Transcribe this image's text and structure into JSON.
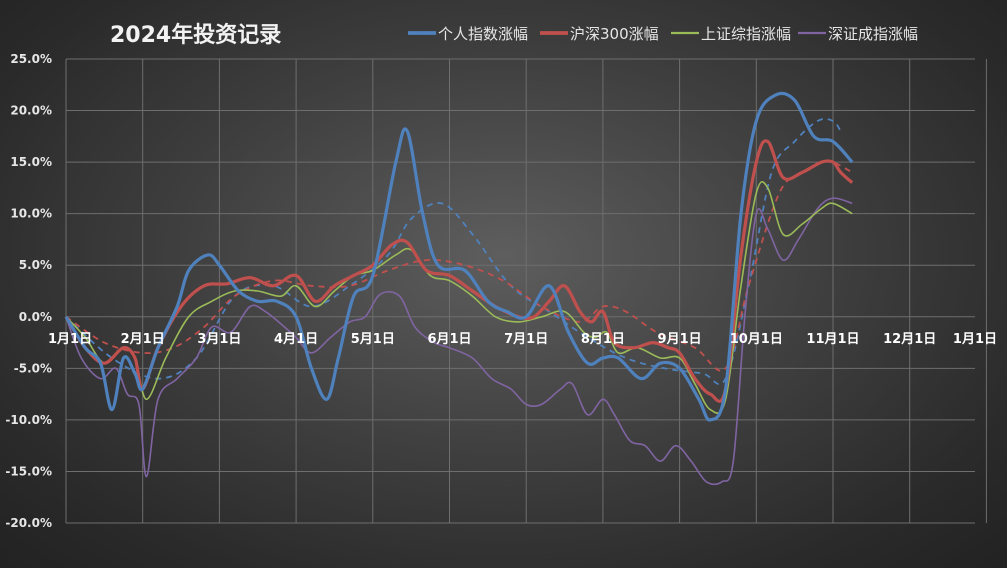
{
  "chart_data": {
    "type": "line",
    "title": "2024年投资记录",
    "xlabel": "",
    "ylabel": "",
    "x_ticks": [
      "1月1日",
      "2月1日",
      "3月1日",
      "4月1日",
      "5月1日",
      "6月1日",
      "7月1日",
      "8月1日",
      "9月1日",
      "10月1日",
      "11月1日",
      "12月1日",
      "1月1日"
    ],
    "y_ticks": [
      "25.0%",
      "20.0%",
      "15.0%",
      "10.0%",
      "5.0%",
      "0.0%",
      "-5.0%",
      "-10.0%",
      "-15.0%",
      "-20.0%"
    ],
    "ylim": [
      -20,
      25
    ],
    "x_unit": "month",
    "xlim": [
      0,
      12
    ],
    "grid": true,
    "legend_position": "top",
    "series": [
      {
        "name": "个人指数涨幅",
        "color": "#4f81bd",
        "values": [
          [
            0,
            0
          ],
          [
            0.25,
            -3
          ],
          [
            0.45,
            -4.5
          ],
          [
            0.6,
            -9
          ],
          [
            0.75,
            -4
          ],
          [
            0.9,
            -5.5
          ],
          [
            1,
            -7
          ],
          [
            1.2,
            -3
          ],
          [
            1.45,
            1
          ],
          [
            1.6,
            4.5
          ],
          [
            1.85,
            6
          ],
          [
            2,
            5
          ],
          [
            2.25,
            2.5
          ],
          [
            2.5,
            1.5
          ],
          [
            2.75,
            1.5
          ],
          [
            3,
            0
          ],
          [
            3.2,
            -5
          ],
          [
            3.4,
            -8
          ],
          [
            3.55,
            -4
          ],
          [
            3.75,
            2
          ],
          [
            4.0,
            4
          ],
          [
            4.3,
            15
          ],
          [
            4.45,
            18
          ],
          [
            4.65,
            10
          ],
          [
            4.85,
            5
          ],
          [
            5.2,
            4.5
          ],
          [
            5.5,
            1.5
          ],
          [
            5.75,
            0.5
          ],
          [
            6.0,
            0
          ],
          [
            6.3,
            3
          ],
          [
            6.55,
            -1.5
          ],
          [
            6.8,
            -4.5
          ],
          [
            7.0,
            -4
          ],
          [
            7.2,
            -4
          ],
          [
            7.5,
            -6
          ],
          [
            7.75,
            -4.5
          ],
          [
            8.0,
            -5
          ],
          [
            8.25,
            -8
          ],
          [
            8.4,
            -10
          ],
          [
            8.6,
            -7
          ],
          [
            8.8,
            10
          ],
          [
            9.0,
            19
          ],
          [
            9.25,
            21.5
          ],
          [
            9.5,
            21
          ],
          [
            9.75,
            17.5
          ],
          [
            10.0,
            17
          ],
          [
            10.25,
            15
          ]
        ]
      },
      {
        "name": "沪深300涨幅",
        "color": "#c0504d",
        "values": [
          [
            0,
            0
          ],
          [
            0.25,
            -3
          ],
          [
            0.5,
            -4.5
          ],
          [
            0.75,
            -3
          ],
          [
            0.9,
            -4
          ],
          [
            1.0,
            -7
          ],
          [
            1.2,
            -3
          ],
          [
            1.5,
            1
          ],
          [
            1.8,
            3
          ],
          [
            2.1,
            3.2
          ],
          [
            2.4,
            3.8
          ],
          [
            2.7,
            3
          ],
          [
            3.0,
            4
          ],
          [
            3.25,
            1.5
          ],
          [
            3.5,
            3
          ],
          [
            3.75,
            4
          ],
          [
            4.0,
            5
          ],
          [
            4.25,
            7
          ],
          [
            4.45,
            7.2
          ],
          [
            4.7,
            4.5
          ],
          [
            5.0,
            4
          ],
          [
            5.3,
            2.5
          ],
          [
            5.6,
            1
          ],
          [
            5.9,
            0
          ],
          [
            6.1,
            0
          ],
          [
            6.3,
            1.5
          ],
          [
            6.5,
            3
          ],
          [
            6.7,
            0.5
          ],
          [
            6.85,
            -0.5
          ],
          [
            7.0,
            0.5
          ],
          [
            7.15,
            -2.5
          ],
          [
            7.4,
            -3
          ],
          [
            7.65,
            -2.5
          ],
          [
            7.85,
            -3
          ],
          [
            8.0,
            -3.5
          ],
          [
            8.2,
            -6
          ],
          [
            8.4,
            -7.5
          ],
          [
            8.6,
            -7
          ],
          [
            8.8,
            6
          ],
          [
            9.0,
            15
          ],
          [
            9.15,
            17
          ],
          [
            9.35,
            13.5
          ],
          [
            9.6,
            14
          ],
          [
            9.85,
            15
          ],
          [
            10.0,
            15
          ],
          [
            10.1,
            14
          ],
          [
            10.25,
            13
          ]
        ]
      },
      {
        "name": "上证综指涨幅",
        "color": "#9bbb59",
        "values": [
          [
            0,
            0
          ],
          [
            0.25,
            -2
          ],
          [
            0.5,
            -4.5
          ],
          [
            0.75,
            -3
          ],
          [
            0.9,
            -4
          ],
          [
            1.05,
            -8
          ],
          [
            1.3,
            -4
          ],
          [
            1.6,
            0
          ],
          [
            1.9,
            1.5
          ],
          [
            2.2,
            2.5
          ],
          [
            2.5,
            2.5
          ],
          [
            2.8,
            2
          ],
          [
            3.0,
            3
          ],
          [
            3.25,
            1
          ],
          [
            3.5,
            2.5
          ],
          [
            3.75,
            4
          ],
          [
            4.0,
            4.5
          ],
          [
            4.3,
            6
          ],
          [
            4.5,
            6.5
          ],
          [
            4.75,
            4
          ],
          [
            5.0,
            3.5
          ],
          [
            5.3,
            2
          ],
          [
            5.6,
            0
          ],
          [
            5.9,
            -0.5
          ],
          [
            6.2,
            0
          ],
          [
            6.5,
            0.5
          ],
          [
            6.75,
            -1.5
          ],
          [
            6.9,
            -2
          ],
          [
            7.05,
            -1.5
          ],
          [
            7.2,
            -3.5
          ],
          [
            7.45,
            -3
          ],
          [
            7.75,
            -4
          ],
          [
            8.0,
            -4
          ],
          [
            8.2,
            -6.5
          ],
          [
            8.4,
            -9
          ],
          [
            8.6,
            -8
          ],
          [
            8.8,
            3
          ],
          [
            9.0,
            12
          ],
          [
            9.15,
            12.5
          ],
          [
            9.35,
            8
          ],
          [
            9.6,
            9
          ],
          [
            9.85,
            10.5
          ],
          [
            10.0,
            11
          ],
          [
            10.25,
            10
          ]
        ]
      },
      {
        "name": "深证成指涨幅",
        "color": "#8064a2",
        "values": [
          [
            0,
            0
          ],
          [
            0.2,
            -4
          ],
          [
            0.45,
            -6
          ],
          [
            0.65,
            -5
          ],
          [
            0.8,
            -7.5
          ],
          [
            0.95,
            -8.5
          ],
          [
            1.05,
            -15.5
          ],
          [
            1.2,
            -8
          ],
          [
            1.45,
            -6
          ],
          [
            1.7,
            -4
          ],
          [
            1.9,
            -1
          ],
          [
            2.15,
            -1.5
          ],
          [
            2.4,
            1
          ],
          [
            2.6,
            0.5
          ],
          [
            2.85,
            -1
          ],
          [
            3.0,
            -2
          ],
          [
            3.2,
            -3.5
          ],
          [
            3.45,
            -2
          ],
          [
            3.7,
            -0.5
          ],
          [
            3.9,
            0
          ],
          [
            4.1,
            2.2
          ],
          [
            4.35,
            2
          ],
          [
            4.55,
            -1
          ],
          [
            4.8,
            -2.5
          ],
          [
            5.0,
            -3
          ],
          [
            5.3,
            -4
          ],
          [
            5.55,
            -6
          ],
          [
            5.8,
            -7
          ],
          [
            6.0,
            -8.5
          ],
          [
            6.2,
            -8.5
          ],
          [
            6.45,
            -7
          ],
          [
            6.6,
            -6.5
          ],
          [
            6.8,
            -9.5
          ],
          [
            7.0,
            -8
          ],
          [
            7.15,
            -9.5
          ],
          [
            7.35,
            -12
          ],
          [
            7.55,
            -12.5
          ],
          [
            7.75,
            -14
          ],
          [
            7.95,
            -12.5
          ],
          [
            8.15,
            -14
          ],
          [
            8.35,
            -16
          ],
          [
            8.55,
            -16
          ],
          [
            8.7,
            -14
          ],
          [
            8.85,
            0
          ],
          [
            9.0,
            10
          ],
          [
            9.15,
            8.5
          ],
          [
            9.35,
            5.5
          ],
          [
            9.55,
            7.5
          ],
          [
            9.8,
            10.5
          ],
          [
            10.0,
            11.5
          ],
          [
            10.25,
            11
          ]
        ]
      }
    ],
    "trendlines": [
      {
        "name": "个人指数涨幅",
        "color": "#4f81bd",
        "values": [
          [
            0,
            0
          ],
          [
            0.6,
            -4
          ],
          [
            1.2,
            -6
          ],
          [
            1.7,
            -4
          ],
          [
            2.2,
            2
          ],
          [
            2.7,
            3
          ],
          [
            3.2,
            1
          ],
          [
            3.7,
            3
          ],
          [
            4.2,
            6
          ],
          [
            4.5,
            9.5
          ],
          [
            4.9,
            11
          ],
          [
            5.3,
            8
          ],
          [
            5.8,
            3
          ],
          [
            6.3,
            0.5
          ],
          [
            6.8,
            -2
          ],
          [
            7.3,
            -4
          ],
          [
            7.8,
            -5
          ],
          [
            8.3,
            -5.5
          ],
          [
            8.6,
            -6
          ],
          [
            8.9,
            3
          ],
          [
            9.2,
            14
          ],
          [
            9.5,
            17
          ],
          [
            9.8,
            19
          ],
          [
            10.0,
            19
          ],
          [
            10.1,
            18
          ]
        ]
      },
      {
        "name": "沪深300涨幅",
        "color": "#c0504d",
        "values": [
          [
            0,
            0
          ],
          [
            0.5,
            -2.5
          ],
          [
            1.0,
            -3.5
          ],
          [
            1.4,
            -3
          ],
          [
            1.8,
            -1
          ],
          [
            2.2,
            2
          ],
          [
            2.7,
            3.5
          ],
          [
            3.2,
            3
          ],
          [
            3.7,
            3
          ],
          [
            4.2,
            4.5
          ],
          [
            4.7,
            5.5
          ],
          [
            5.2,
            5
          ],
          [
            5.7,
            3.5
          ],
          [
            6.2,
            1
          ],
          [
            6.7,
            -0.5
          ],
          [
            7.0,
            1
          ],
          [
            7.3,
            0.5
          ],
          [
            7.7,
            -1.5
          ],
          [
            8.2,
            -3
          ],
          [
            8.6,
            -5
          ],
          [
            8.9,
            3
          ],
          [
            9.3,
            12
          ],
          [
            9.6,
            14
          ],
          [
            9.85,
            15
          ],
          [
            10.0,
            15
          ],
          [
            10.25,
            14
          ]
        ]
      },
      {
        "name": "深证成指涨幅",
        "color": "#8064a2",
        "values": []
      }
    ]
  }
}
